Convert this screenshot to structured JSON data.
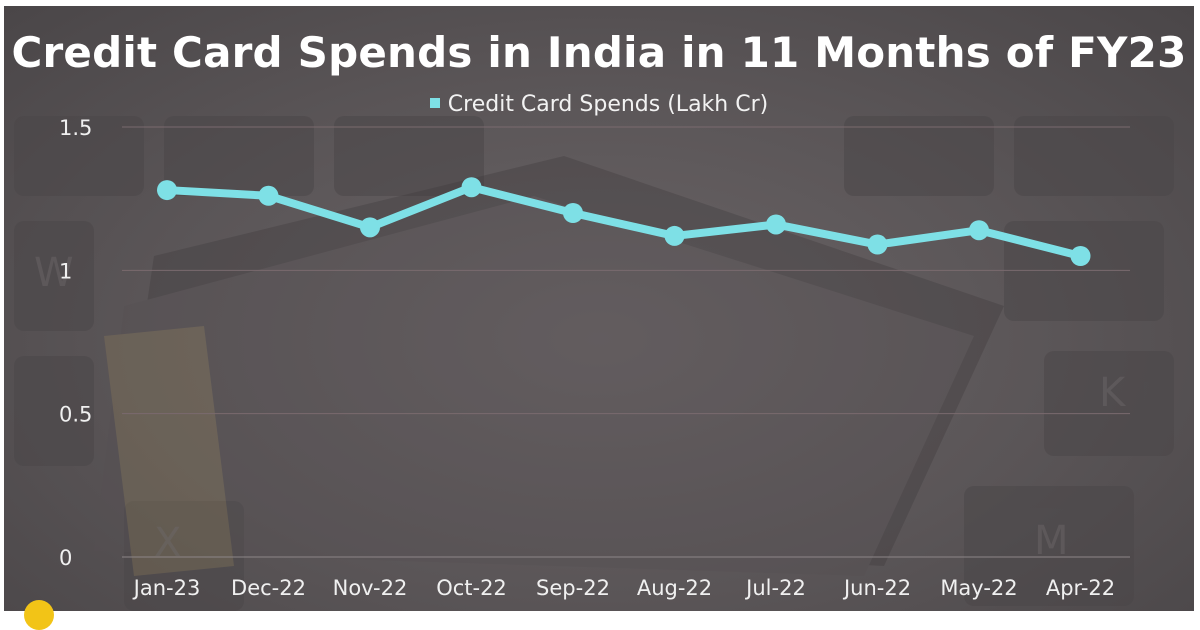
{
  "chart_data": {
    "type": "line",
    "title": "Credit Card Spends in India in 11 Months of FY23",
    "categories": [
      "Jan-23",
      "Dec-22",
      "Nov-22",
      "Oct-22",
      "Sep-22",
      "Aug-22",
      "Jul-22",
      "Jun-22",
      "May-22",
      "Apr-22"
    ],
    "series": [
      {
        "name": "Credit Card Spends (Lakh Cr)",
        "values": [
          1.28,
          1.26,
          1.15,
          1.29,
          1.2,
          1.12,
          1.16,
          1.09,
          1.14,
          1.05
        ],
        "color": "#7ee0e6"
      }
    ],
    "ylim": [
      0,
      1.5
    ],
    "yticks": [
      0,
      0.5,
      1,
      1.5
    ],
    "ytick_labels": [
      "0",
      "0.5",
      "1",
      "1.5"
    ],
    "xlabel": "",
    "ylabel": "",
    "grid": true,
    "legend_position": "top-center",
    "background_color": "#5a5557",
    "text_color": "#ffffff"
  }
}
